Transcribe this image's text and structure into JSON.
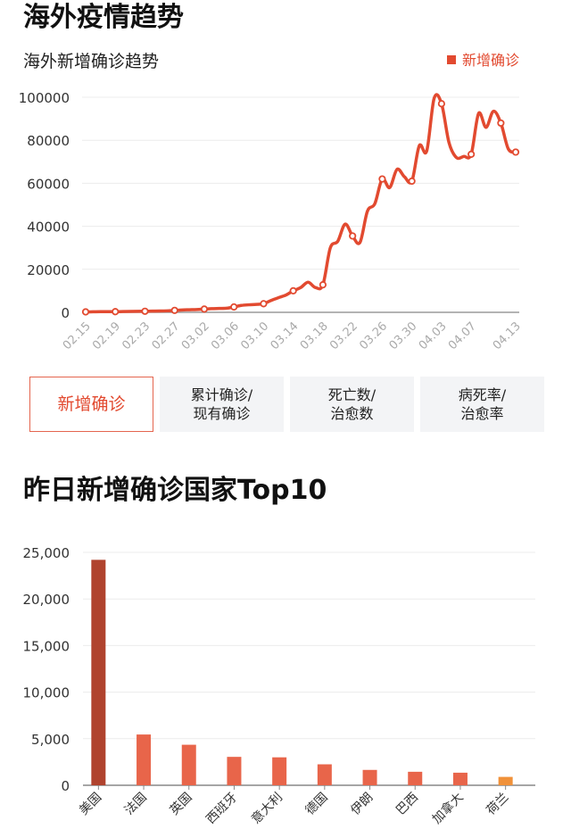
{
  "section1": {
    "title": "海外疫情趋势"
  },
  "tabs": [
    {
      "lines": [
        "新增确诊"
      ],
      "active": true
    },
    {
      "lines": [
        "累计确诊/",
        "现有确诊"
      ],
      "active": false
    },
    {
      "lines": [
        "死亡数/",
        "治愈数"
      ],
      "active": false
    },
    {
      "lines": [
        "病死率/",
        "治愈率"
      ],
      "active": false
    }
  ],
  "section2": {
    "title": "昨日新增确诊国家Top10"
  },
  "chart_data": [
    {
      "type": "line",
      "title": "海外新增确诊趋势",
      "legend": {
        "label": "新增确诊",
        "position": "top-right"
      },
      "color": "#e24a30",
      "ylim": [
        0,
        100000
      ],
      "yticks": [
        0,
        20000,
        40000,
        60000,
        80000,
        100000
      ],
      "yticklabels": [
        "0",
        "20000",
        "40000",
        "60000",
        "80000",
        "100000"
      ],
      "xticklabels": [
        "02.15",
        "02.19",
        "02.23",
        "02.27",
        "03.02",
        "03.06",
        "03.10",
        "03.14",
        "03.18",
        "03.22",
        "03.26",
        "03.30",
        "04.03",
        "04.07",
        "04.13"
      ],
      "grid": true,
      "series": [
        {
          "dates": [
            "02.15",
            "02.16",
            "02.17",
            "02.18",
            "02.19",
            "02.20",
            "02.21",
            "02.22",
            "02.23",
            "02.24",
            "02.25",
            "02.26",
            "02.27",
            "02.28",
            "02.29",
            "03.01",
            "03.02",
            "03.03",
            "03.04",
            "03.05",
            "03.06",
            "03.07",
            "03.08",
            "03.09",
            "03.10",
            "03.11",
            "03.12",
            "03.13",
            "03.14",
            "03.15",
            "03.16",
            "03.17",
            "03.18",
            "03.19",
            "03.20",
            "03.21",
            "03.22",
            "03.23",
            "03.24",
            "03.25",
            "03.26",
            "03.27",
            "03.28",
            "03.29",
            "03.30",
            "03.31",
            "04.01",
            "04.02",
            "04.03",
            "04.04",
            "04.05",
            "04.06",
            "04.07",
            "04.08",
            "04.09",
            "04.10",
            "04.11",
            "04.12",
            "04.13"
          ],
          "values": [
            200,
            250,
            300,
            300,
            300,
            350,
            400,
            450,
            500,
            550,
            600,
            700,
            900,
            1100,
            1200,
            1300,
            1500,
            1700,
            1800,
            1900,
            2500,
            3200,
            3500,
            3700,
            4000,
            5500,
            6800,
            8000,
            10000,
            11500,
            14000,
            11500,
            12800,
            30000,
            33000,
            41000,
            35500,
            32500,
            47000,
            50500,
            62000,
            58000,
            66500,
            63000,
            61000,
            77500,
            75000,
            99500,
            97000,
            79000,
            72000,
            72500,
            73500,
            92500,
            86000,
            93500,
            88000,
            76000,
            74500
          ],
          "marked_dates": [
            "02.15",
            "02.19",
            "02.23",
            "02.27",
            "03.02",
            "03.06",
            "03.10",
            "03.14",
            "03.18",
            "03.22",
            "03.26",
            "03.30",
            "04.03",
            "04.07",
            "04.11",
            "04.13"
          ]
        }
      ]
    },
    {
      "type": "bar",
      "title": "昨日新增确诊国家Top10",
      "categories": [
        "美国",
        "法国",
        "英国",
        "西班牙",
        "意大利",
        "德国",
        "伊朗",
        "巴西",
        "加拿大",
        "荷兰"
      ],
      "values": [
        24200,
        5450,
        4350,
        3050,
        3000,
        2250,
        1650,
        1450,
        1350,
        900
      ],
      "colors": [
        "#b0432e",
        "#e8654a",
        "#e8654a",
        "#e8654a",
        "#e8654a",
        "#e8654a",
        "#e8654a",
        "#e8654a",
        "#e8654a",
        "#f0913a"
      ],
      "ylim": [
        0,
        25000
      ],
      "yticks": [
        0,
        5000,
        10000,
        15000,
        20000,
        25000
      ],
      "yticklabels": [
        "0",
        "5,000",
        "10,000",
        "15,000",
        "20,000",
        "25,000"
      ],
      "grid": true
    }
  ]
}
